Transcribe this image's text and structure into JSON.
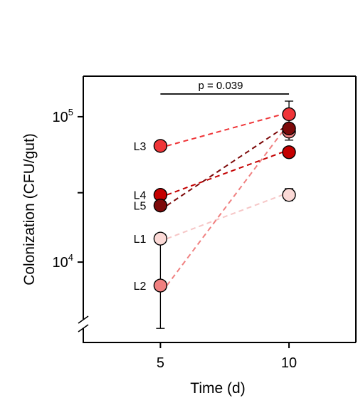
{
  "chart_data": {
    "type": "scatter",
    "title": "",
    "xlabel": "Time (d)",
    "ylabel": "Colonization (CFU/gut)",
    "y_scale": "log",
    "x_ticks": [
      {
        "value": 5,
        "label": "5"
      },
      {
        "value": 10,
        "label": "10"
      }
    ],
    "y_ticks": [
      {
        "value": 10000,
        "base": "10",
        "exp": "4",
        "major": true
      },
      {
        "value": 30000,
        "major": false
      },
      {
        "value": 100000,
        "base": "10",
        "exp": "5",
        "major": true
      }
    ],
    "xlim": [
      2.0,
      12.6
    ],
    "ylim": [
      2800,
      190000
    ],
    "axis_break": true,
    "grid": false,
    "legend": "none",
    "connector_style": "dashed",
    "series": [
      {
        "name": "L1",
        "color": "#fbd9d6",
        "line_color": "#f6c6c6",
        "values": [
          {
            "x": 5,
            "y": 14500
          },
          {
            "x": 10,
            "y": 29000
          }
        ],
        "err": [
          {
            "lo": 13500,
            "hi": 15500
          },
          {
            "lo": 26500,
            "hi": 32000
          }
        ]
      },
      {
        "name": "L2",
        "color": "#f08080",
        "line_color": "#f08080",
        "values": [
          {
            "x": 5,
            "y": 6900
          },
          {
            "x": 10,
            "y": 79000
          }
        ],
        "err": [
          {
            "lo": 3500,
            "hi": 13500
          },
          {
            "lo": 69000,
            "hi": 90000
          }
        ]
      },
      {
        "name": "L3",
        "color": "#ef3538",
        "line_color": "#ef3538",
        "values": [
          {
            "x": 5,
            "y": 63000
          },
          {
            "x": 10,
            "y": 104000
          }
        ],
        "err": [
          {
            "lo": 60000,
            "hi": 66000
          },
          {
            "lo": 90000,
            "hi": 128000
          }
        ]
      },
      {
        "name": "L4",
        "color": "#c40000",
        "line_color": "#c40000",
        "values": [
          {
            "x": 5,
            "y": 29000
          },
          {
            "x": 10,
            "y": 57000
          }
        ],
        "err": [
          {
            "lo": 27500,
            "hi": 30500
          },
          {
            "lo": 53000,
            "hi": 61000
          }
        ]
      },
      {
        "name": "L5",
        "color": "#7d0a0a",
        "line_color": "#7d0a0a",
        "values": [
          {
            "x": 5,
            "y": 24500
          },
          {
            "x": 10,
            "y": 83000
          }
        ],
        "err": [
          {
            "lo": 23000,
            "hi": 26000
          },
          {
            "lo": 76000,
            "hi": 90000
          }
        ]
      }
    ],
    "label_order": [
      "L3",
      "L4",
      "L5",
      "L1",
      "L2"
    ],
    "annotation": {
      "text": "p = 0.039",
      "x_from": 5,
      "x_to": 10
    }
  }
}
